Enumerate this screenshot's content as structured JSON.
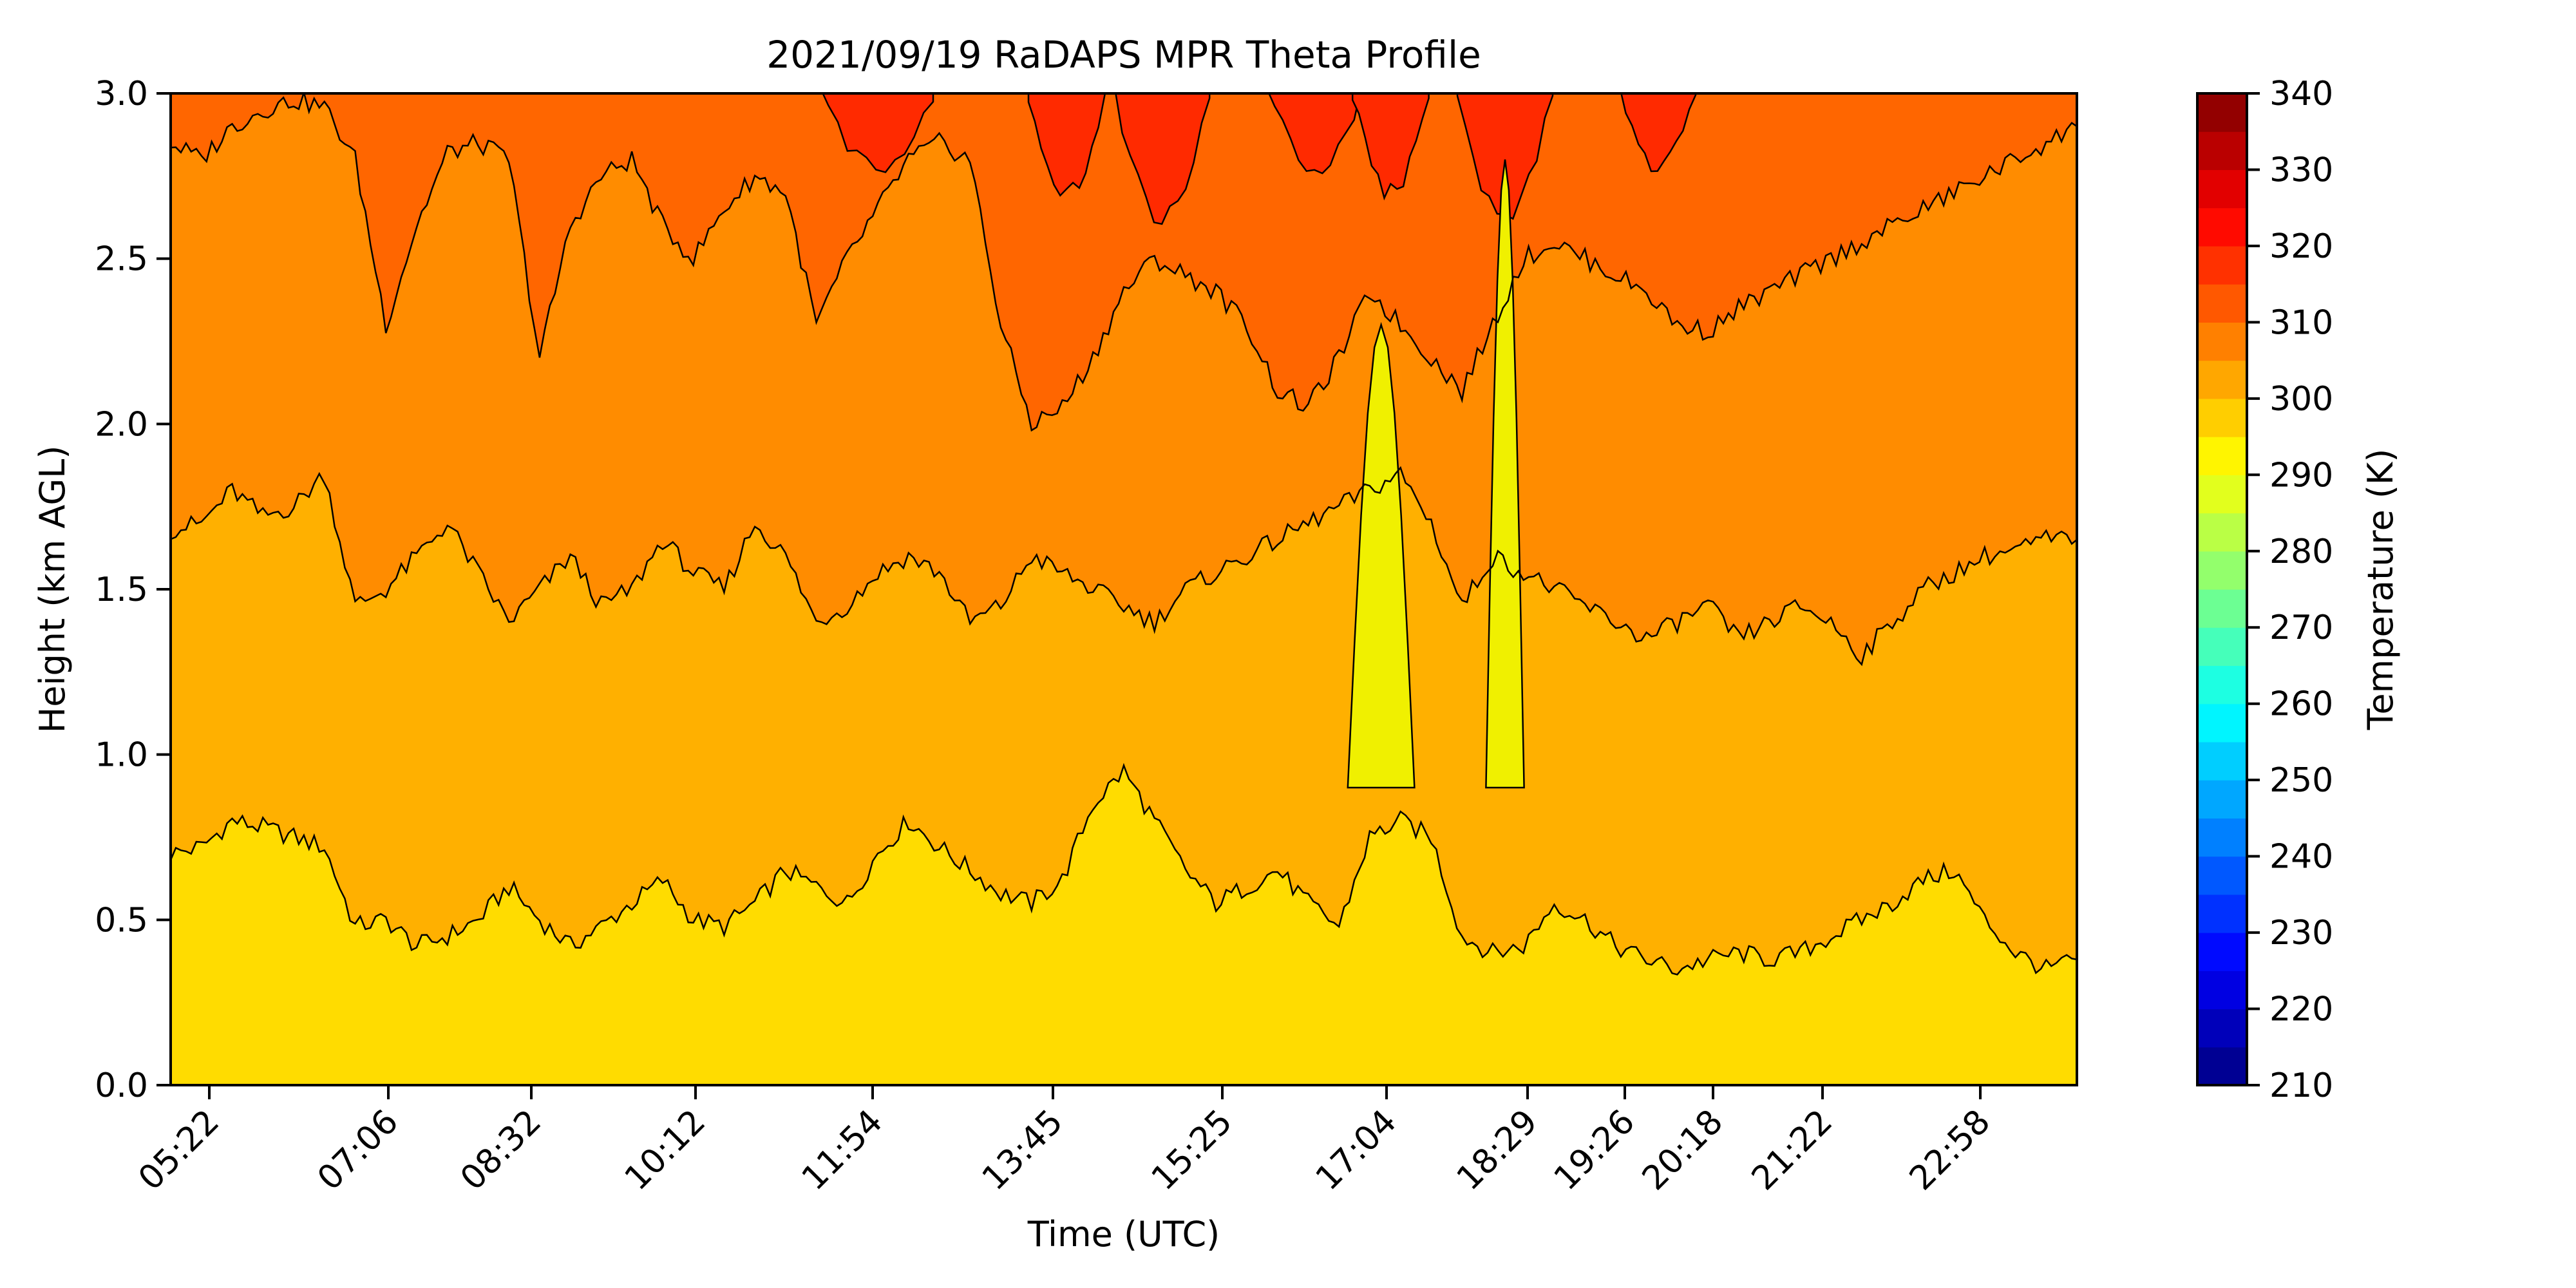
{
  "chart_data": {
    "type": "heatmap",
    "subtype": "filled-contour",
    "title": "2021/09/19 RaDAPS MPR Theta Profile",
    "xlabel": "Time (UTC)",
    "ylabel": "Height (km AGL)",
    "x_ticks": [
      "05:22",
      "07:06",
      "08:32",
      "10:12",
      "11:54",
      "13:45",
      "15:25",
      "17:04",
      "18:29",
      "19:26",
      "20:18",
      "21:22",
      "22:58"
    ],
    "y_ticks": [
      "0.0",
      "0.5",
      "1.0",
      "1.5",
      "2.0",
      "2.5",
      "3.0"
    ],
    "ylim": [
      0,
      3
    ],
    "colorbar": {
      "label": "Temperature (K)",
      "range": [
        210,
        340
      ],
      "levels_step": 5,
      "ticks": [
        "210",
        "220",
        "230",
        "240",
        "250",
        "260",
        "270",
        "280",
        "290",
        "300",
        "310",
        "320",
        "330",
        "340"
      ],
      "colormap": "jet"
    },
    "theta_bands": [
      {
        "range": [
          295,
          300
        ],
        "color": "#ffdc00",
        "description_height_km": [
          0.0,
          0.5
        ]
      },
      {
        "range": [
          300,
          305
        ],
        "color": "#ffb000",
        "description_height_km": [
          0.5,
          1.6
        ]
      },
      {
        "range": [
          305,
          310
        ],
        "color": "#ff8c00",
        "description_height_km": [
          1.6,
          2.8
        ]
      },
      {
        "range": [
          310,
          315
        ],
        "color": "#ff6600",
        "description_height_km": [
          2.8,
          3.0
        ]
      },
      {
        "range": [
          315,
          320
        ],
        "color": "#ff2a00",
        "description_height_km": [
          2.7,
          3.0
        ]
      }
    ],
    "contour_profiles": {
      "note": "approximate heights (km) of contour boundaries, sampled every 0.25 of tick spacing",
      "boundary_300K": [
        0.7,
        0.72,
        0.8,
        0.78,
        0.75,
        0.72,
        0.48,
        0.5,
        0.42,
        0.45,
        0.5,
        0.6,
        0.5,
        0.42,
        0.48,
        0.55,
        0.62,
        0.5,
        0.48,
        0.55,
        0.65,
        0.6,
        0.55,
        0.7,
        0.8,
        0.72,
        0.65,
        0.58,
        0.55,
        0.62,
        0.85,
        0.95,
        0.8,
        0.65,
        0.55,
        0.6,
        0.65,
        0.55,
        0.48,
        0.75,
        0.8,
        0.75,
        0.45,
        0.4,
        0.42,
        0.55,
        0.5,
        0.42,
        0.38,
        0.35,
        0.38,
        0.4,
        0.38,
        0.4,
        0.45,
        0.5,
        0.55,
        0.62,
        0.65,
        0.5,
        0.4,
        0.35,
        0.38
      ],
      "boundary_305K": [
        1.68,
        1.7,
        1.8,
        1.72,
        1.75,
        1.85,
        1.45,
        1.5,
        1.6,
        1.7,
        1.55,
        1.4,
        1.5,
        1.6,
        1.45,
        1.5,
        1.65,
        1.55,
        1.5,
        1.7,
        1.6,
        1.4,
        1.45,
        1.55,
        1.6,
        1.55,
        1.4,
        1.45,
        1.6,
        1.55,
        1.5,
        1.45,
        1.4,
        1.5,
        1.55,
        1.6,
        1.65,
        1.7,
        1.75,
        1.8,
        1.85,
        1.7,
        1.45,
        1.6,
        1.55,
        1.5,
        1.45,
        1.4,
        1.35,
        1.4,
        1.45,
        1.35,
        1.4,
        1.45,
        1.4,
        1.3,
        1.4,
        1.5,
        1.55,
        1.6,
        1.62,
        1.65,
        1.65
      ],
      "boundary_310K": [
        2.85,
        2.8,
        2.9,
        2.95,
        2.98,
        2.96,
        2.8,
        2.3,
        2.6,
        2.82,
        2.85,
        2.8,
        2.2,
        2.6,
        2.75,
        2.8,
        2.6,
        2.5,
        2.65,
        2.75,
        2.7,
        2.3,
        2.5,
        2.65,
        2.8,
        2.85,
        2.8,
        2.3,
        2.0,
        2.05,
        2.2,
        2.4,
        2.5,
        2.45,
        2.4,
        2.3,
        2.1,
        2.05,
        2.2,
        2.4,
        2.3,
        2.2,
        2.1,
        2.3,
        2.5,
        2.55,
        2.5,
        2.45,
        2.4,
        2.3,
        2.28,
        2.35,
        2.4,
        2.45,
        2.5,
        2.55,
        2.6,
        2.65,
        2.7,
        2.75,
        2.8,
        2.85,
        2.9
      ]
    }
  }
}
